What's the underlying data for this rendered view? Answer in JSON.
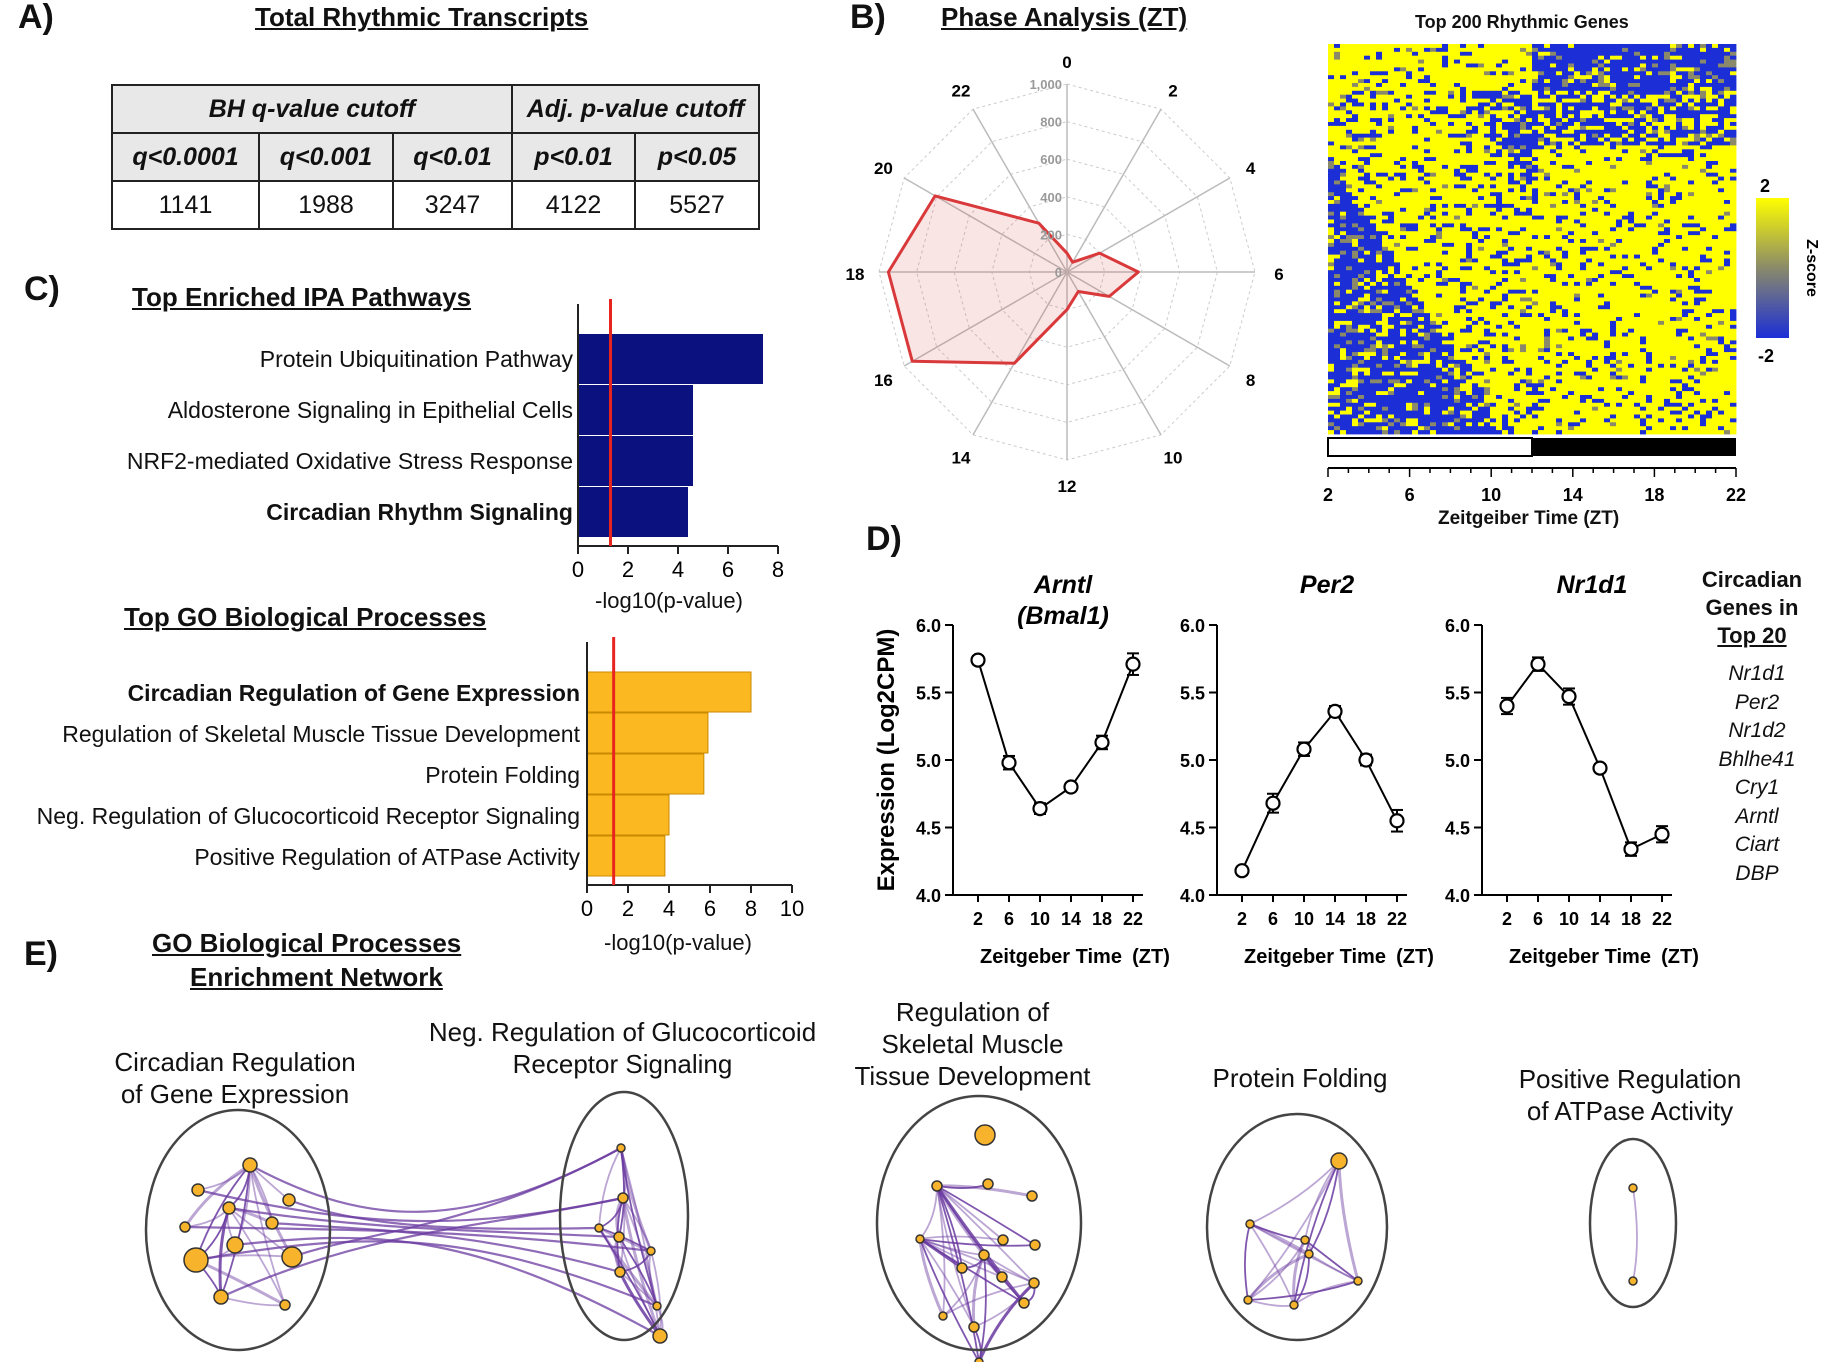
{
  "panels": {
    "A": "A)",
    "B": "B)",
    "C": "C)",
    "D": "D)",
    "E": "E)"
  },
  "tableA": {
    "title": "Total Rhythmic Transcripts",
    "group1": "BH q-value cutoff",
    "group2": "Adj. p-value cutoff",
    "cols": [
      "q<0.0001",
      "q<0.001",
      "q<0.01",
      "p<0.01",
      "p<0.05"
    ],
    "values": [
      "1141",
      "1988",
      "3247",
      "4122",
      "5527"
    ]
  },
  "phase": {
    "title": "Phase Analysis (ZT)",
    "hours": [
      "0",
      "2",
      "4",
      "6",
      "8",
      "10",
      "12",
      "14",
      "16",
      "18",
      "20",
      "22"
    ],
    "radial_ticks": [
      "0",
      "200",
      "400",
      "600",
      "800",
      "1,000"
    ],
    "rmax": 1000
  },
  "heatmap": {
    "title": "Top 200 Rhythmic Genes",
    "xticks": [
      "2",
      "6",
      "10",
      "14",
      "18",
      "22"
    ],
    "xlabel": "Zeitgeiber Time (ZT)",
    "cbar_max": "2",
    "cbar_min": "-2",
    "cbar_label": "Z-score",
    "colors": {
      "low": "#1c2fd6",
      "mid": "#8a8a6a",
      "high": "#ffff00"
    }
  },
  "ipa": {
    "title": "Top Enriched IPA Pathways",
    "xlabel": "-log10(p-value)",
    "xticks": [
      "0",
      "2",
      "4",
      "6",
      "8"
    ],
    "color": "#0b1280",
    "threshold_color": "#e8241e"
  },
  "go": {
    "title": "Top GO Biological Processes",
    "xlabel": "-log10(p-value)",
    "xticks": [
      "0",
      "2",
      "4",
      "6",
      "8",
      "10"
    ],
    "color": "#fbb820",
    "threshold_color": "#e8241e"
  },
  "expr": {
    "ylabel": "Expression (Log2CPM)",
    "xlabel": "Zeitgeber Time",
    "xunit": "(ZT)",
    "yticks": [
      "4.0",
      "4.5",
      "5.0",
      "5.5",
      "6.0"
    ],
    "xticks": [
      "2",
      "6",
      "10",
      "14",
      "18",
      "22"
    ],
    "titles": [
      [
        "Arntl",
        "(Bmal1)"
      ],
      [
        "Per2"
      ],
      [
        "Nr1d1"
      ]
    ]
  },
  "genes_box": {
    "title": [
      "Circadian",
      "Genes in",
      "Top 20"
    ],
    "items": [
      "Nr1d1",
      "Per2",
      "Nr1d2",
      "Bhlhe41",
      "Cry1",
      "Arntl",
      "Ciart",
      "DBP"
    ]
  },
  "network": {
    "title1": "GO Biological Processes",
    "title2": "Enrichment Network",
    "clusters": [
      [
        "Circadian Regulation",
        "of Gene Expression"
      ],
      [
        "Neg. Regulation of Glucocorticoid",
        "Receptor Signaling"
      ],
      [
        "Regulation of",
        "Skeletal Muscle",
        "Tissue Development"
      ],
      [
        "Protein Folding"
      ],
      [
        "Positive Regulation",
        "of ATPase Activity"
      ]
    ],
    "node_color": "#f7b32b",
    "edge_color": "#6a3aa0"
  },
  "chart_data": [
    {
      "type": "bar",
      "orientation": "horizontal",
      "title": "Top Enriched IPA Pathways",
      "categories": [
        "Protein Ubiquitination Pathway",
        "Aldosterone Signaling in Epithelial Cells",
        "NRF2-mediated Oxidative Stress Response",
        "Circadian Rhythm Signaling"
      ],
      "values": [
        7.4,
        4.6,
        4.6,
        4.4
      ],
      "threshold": 1.3,
      "xlabel": "-log10(p-value)",
      "xlim": [
        0,
        8
      ]
    },
    {
      "type": "bar",
      "orientation": "horizontal",
      "title": "Top GO Biological Processes",
      "categories": [
        "Circadian Regulation of Gene Expression",
        "Regulation of Skeletal Muscle Tissue Development",
        "Protein Folding",
        "Neg. Regulation of Glucocorticoid Receptor Signaling",
        "Positive Regulation of ATPase Activity"
      ],
      "values": [
        8.0,
        5.9,
        5.7,
        4.0,
        3.8
      ],
      "threshold": 1.3,
      "xlabel": "-log10(p-value)",
      "xlim": [
        0,
        10
      ]
    },
    {
      "type": "radar",
      "title": "Phase Analysis (ZT)",
      "categories": [
        "0",
        "2",
        "4",
        "6",
        "8",
        "10",
        "12",
        "14",
        "16",
        "18",
        "20",
        "22"
      ],
      "values": [
        100,
        60,
        200,
        380,
        260,
        120,
        200,
        560,
        950,
        950,
        810,
        300
      ],
      "rlim": [
        0,
        1000
      ]
    },
    {
      "type": "line",
      "title": "Arntl (Bmal1)",
      "x": [
        2,
        6,
        10,
        14,
        18,
        22
      ],
      "y": [
        5.74,
        4.98,
        4.64,
        4.8,
        5.13,
        5.71
      ],
      "err": [
        0.03,
        0.05,
        0.04,
        0.03,
        0.05,
        0.08
      ],
      "ylim": [
        4.0,
        6.0
      ],
      "xlabel": "Zeitgeber Time (ZT)",
      "ylabel": "Expression (Log2CPM)"
    },
    {
      "type": "line",
      "title": "Per2",
      "x": [
        2,
        6,
        10,
        14,
        18,
        22
      ],
      "y": [
        4.18,
        4.68,
        5.08,
        5.36,
        5.0,
        4.55
      ],
      "err": [
        0.03,
        0.07,
        0.05,
        0.04,
        0.04,
        0.08
      ],
      "ylim": [
        4.0,
        6.0
      ],
      "xlabel": "Zeitgeber Time (ZT)"
    },
    {
      "type": "line",
      "title": "Nr1d1",
      "x": [
        2,
        6,
        10,
        14,
        18,
        22
      ],
      "y": [
        5.4,
        5.71,
        5.47,
        4.94,
        4.34,
        4.45
      ],
      "err": [
        0.06,
        0.05,
        0.06,
        0.03,
        0.05,
        0.06
      ],
      "ylim": [
        4.0,
        6.0
      ],
      "xlabel": "Zeitgeber Time (ZT)"
    },
    {
      "type": "heatmap",
      "title": "Top 200 Rhythmic Genes",
      "xlabel": "Zeitgeiber Time (ZT)",
      "xticks": [
        2,
        6,
        10,
        14,
        18,
        22
      ],
      "zlim": [
        -2,
        2
      ]
    }
  ]
}
